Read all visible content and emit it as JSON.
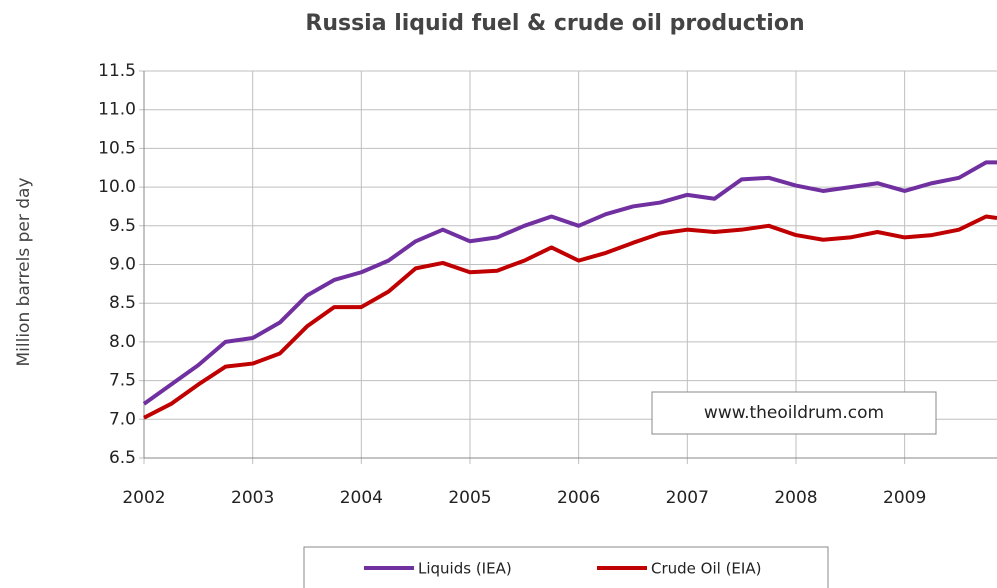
{
  "chart_data": {
    "type": "line",
    "title": "Russia liquid fuel & crude oil production",
    "y_label": "Million barrels per day",
    "annotation": "www.theoildrum.com",
    "x": [
      2002,
      2002.25,
      2002.5,
      2002.75,
      2003,
      2003.25,
      2003.5,
      2003.75,
      2004,
      2004.25,
      2004.5,
      2004.75,
      2005,
      2005.25,
      2005.5,
      2005.75,
      2006,
      2006.25,
      2006.5,
      2006.75,
      2007,
      2007.25,
      2007.5,
      2007.75,
      2008,
      2008.25,
      2008.5,
      2008.75,
      2009,
      2009.25,
      2009.5,
      2009.75,
      2009.85
    ],
    "series": [
      {
        "name": "Liquids (IEA)",
        "color": "#7030a0",
        "values": [
          7.2,
          7.45,
          7.7,
          8.0,
          8.05,
          8.25,
          8.6,
          8.8,
          8.9,
          9.05,
          9.3,
          9.45,
          9.3,
          9.35,
          9.5,
          9.62,
          9.5,
          9.65,
          9.75,
          9.8,
          9.9,
          9.85,
          10.1,
          10.12,
          10.02,
          9.95,
          10.0,
          10.05,
          9.95,
          10.05,
          10.12,
          10.32,
          10.32
        ]
      },
      {
        "name": "Crude Oil (EIA)",
        "color": "#c00000",
        "values": [
          7.02,
          7.2,
          7.45,
          7.68,
          7.72,
          7.85,
          8.2,
          8.45,
          8.45,
          8.65,
          8.95,
          9.02,
          8.9,
          8.92,
          9.05,
          9.22,
          9.05,
          9.15,
          9.28,
          9.4,
          9.45,
          9.42,
          9.45,
          9.5,
          9.38,
          9.32,
          9.35,
          9.42,
          9.35,
          9.38,
          9.45,
          9.62,
          9.6
        ]
      }
    ],
    "xlim": [
      2002,
      2009.85
    ],
    "xticks": [
      2002,
      2003,
      2004,
      2005,
      2006,
      2007,
      2008,
      2009
    ],
    "ylim": [
      6.5,
      11.5
    ],
    "yticks": [
      6.5,
      {
        "value": 7,
        "label": "7.0"
      },
      7.5,
      {
        "value": 8,
        "label": "8.0"
      },
      8.5,
      {
        "value": 9,
        "label": "9.0"
      },
      9.5,
      {
        "value": 10,
        "label": "10.0"
      },
      10.5,
      {
        "value": 11,
        "label": "11.0"
      },
      11.5
    ],
    "grid": true,
    "legend": "bottom"
  }
}
